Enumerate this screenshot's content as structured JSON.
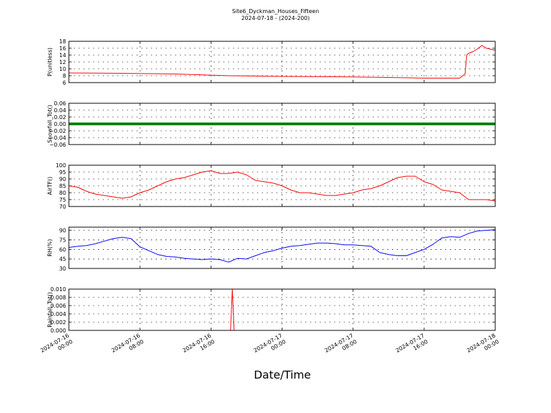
{
  "chart_data": {
    "type": "line",
    "title": "Site6_Dyckman_Houses_Fifteen",
    "subtitle": "2024-07-18 - (2024-200)",
    "xlabel": "Date/Time",
    "x_ticks": [
      [
        "2024-07-16",
        "00:00"
      ],
      [
        "2024-07-16",
        "08:00"
      ],
      [
        "2024-07-16",
        "16:00"
      ],
      [
        "2024-07-17",
        "00:00"
      ],
      [
        "2024-07-17",
        "08:00"
      ],
      [
        "2024-07-17",
        "16:00"
      ],
      [
        "2024-07-18",
        "00:00"
      ]
    ],
    "x_range_hours": [
      0,
      48
    ],
    "grid": true,
    "panels": [
      {
        "ylabel": "P(unitless)",
        "ylim": [
          6,
          18
        ],
        "yticks": [
          "6",
          "8",
          "10",
          "12",
          "14",
          "16",
          "18"
        ],
        "color": "#ff0000",
        "x": [
          0,
          6,
          12,
          18,
          24,
          30,
          36,
          40,
          44,
          44.6,
          44.8,
          45,
          45.5,
          46,
          46.5,
          47,
          47.5,
          48
        ],
        "y": [
          8.8,
          8.7,
          8.5,
          8.0,
          7.8,
          7.7,
          7.5,
          7.3,
          7.3,
          8.5,
          14.0,
          14.5,
          15.0,
          15.8,
          16.8,
          16.0,
          15.7,
          15.4
        ]
      },
      {
        "ylabel": "Snowfall_Tot()",
        "ylim": [
          -0.06,
          0.06
        ],
        "yticks": [
          "−0.06",
          "−0.04",
          "−0.02",
          "0.00",
          "0.02",
          "0.04",
          "0.06"
        ],
        "color": "#008000",
        "x": [
          0,
          48
        ],
        "y": [
          0,
          0
        ]
      },
      {
        "ylabel": "AirTF()",
        "ylim": [
          70,
          100
        ],
        "yticks": [
          "70",
          "75",
          "80",
          "85",
          "90",
          "95",
          "100"
        ],
        "color": "#ff0000",
        "x": [
          0,
          1,
          2,
          3,
          4,
          5,
          6,
          7,
          8,
          9,
          10,
          11,
          12,
          13,
          14,
          15,
          16,
          17,
          18,
          19,
          20,
          21,
          22,
          23,
          24,
          25,
          26,
          27,
          28,
          29,
          30,
          31,
          32,
          33,
          34,
          35,
          36,
          37,
          38,
          39,
          40,
          41,
          42,
          43,
          44,
          45,
          46,
          47,
          48
        ],
        "y": [
          85,
          84,
          81,
          79,
          78,
          77,
          76,
          77,
          80,
          82,
          85,
          88,
          90,
          91,
          93,
          95,
          96,
          94,
          94,
          95,
          93,
          89,
          88,
          87,
          85,
          82,
          80,
          80,
          79,
          78,
          78,
          79,
          80,
          82,
          83,
          85,
          88,
          91,
          92,
          92,
          88,
          86,
          82,
          81,
          80,
          75,
          75,
          75,
          74
        ]
      },
      {
        "ylabel": "RH(%)",
        "ylim": [
          30,
          95
        ],
        "yticks": [
          "30",
          "45",
          "60",
          "75",
          "90"
        ],
        "ytick_values": [
          30,
          45,
          60,
          75,
          90
        ],
        "color": "#0000ff",
        "x": [
          0,
          1,
          2,
          3,
          4,
          5,
          6,
          7,
          8,
          9,
          10,
          11,
          12,
          13,
          14,
          15,
          16,
          17,
          18,
          19,
          20,
          21,
          22,
          23,
          24,
          25,
          26,
          27,
          28,
          29,
          30,
          31,
          32,
          33,
          34,
          35,
          36,
          37,
          38,
          39,
          40,
          41,
          42,
          43,
          44,
          45,
          46,
          47,
          48
        ],
        "y": [
          63,
          65,
          66,
          69,
          73,
          77,
          79,
          77,
          64,
          58,
          52,
          49,
          48,
          46,
          45,
          44,
          45,
          44,
          40,
          46,
          45,
          50,
          55,
          58,
          62,
          65,
          66,
          68,
          70,
          70,
          69,
          67,
          67,
          66,
          65,
          55,
          52,
          50,
          50,
          55,
          60,
          68,
          78,
          80,
          79,
          85,
          89,
          90,
          91
        ]
      },
      {
        "ylabel": "Rainfall_Tot()",
        "ylim": [
          0,
          0.01
        ],
        "yticks": [
          "0.000",
          "0.002",
          "0.004",
          "0.006",
          "0.008",
          "0.010"
        ],
        "color": "#ff0000",
        "x": [
          0,
          18.2,
          18.4,
          18.6,
          48
        ],
        "y": [
          0,
          0,
          0.01,
          0,
          0
        ]
      }
    ]
  }
}
